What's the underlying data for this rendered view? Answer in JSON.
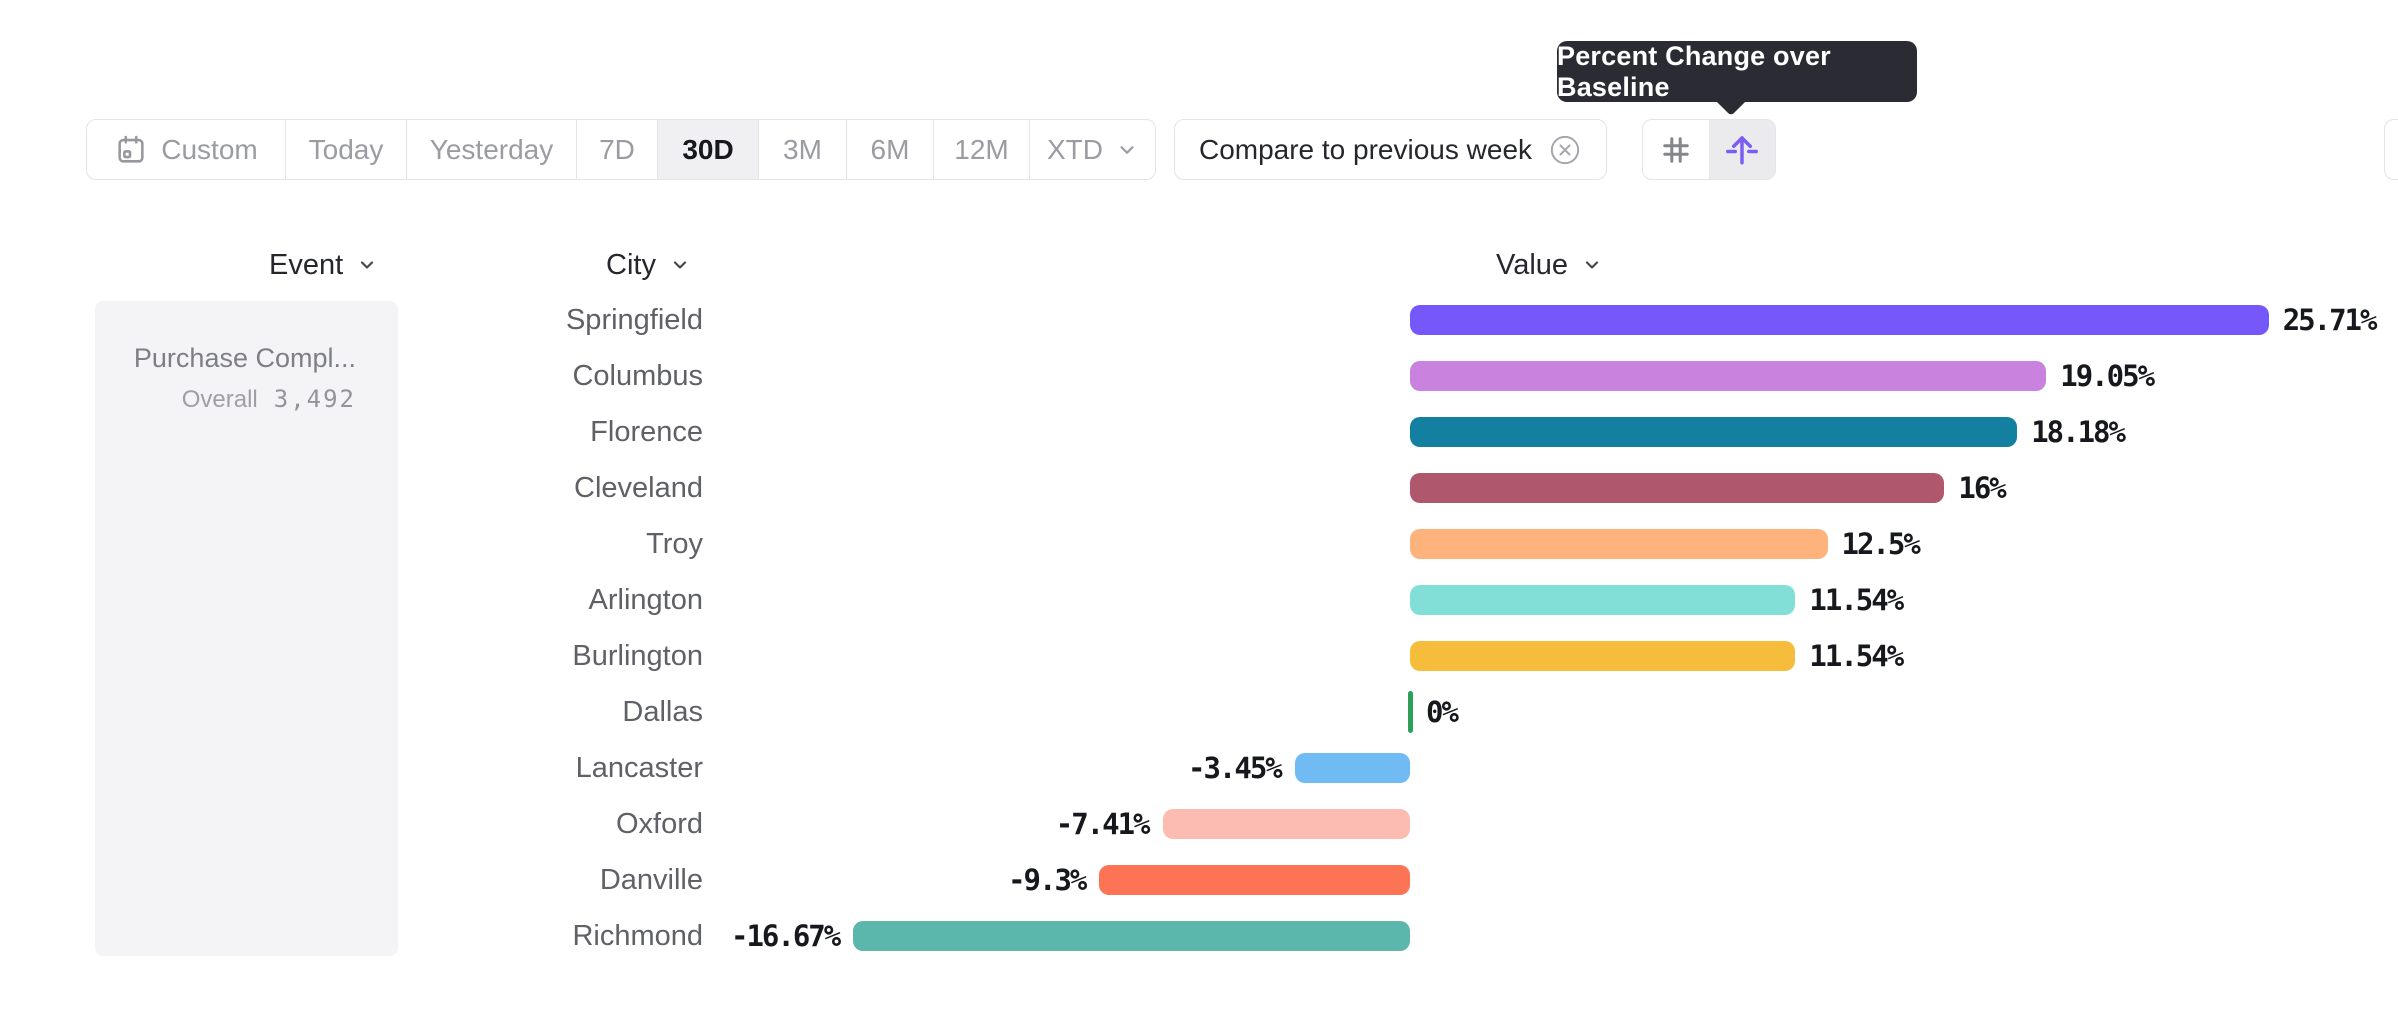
{
  "tooltip": {
    "text": "Percent Change over Baseline",
    "bg_color": "#2b2b33"
  },
  "toolbar": {
    "date_ranges": [
      {
        "key": "custom",
        "label": "Custom",
        "icon": "calendar-icon",
        "selected": false
      },
      {
        "key": "today",
        "label": "Today",
        "selected": false
      },
      {
        "key": "yesterday",
        "label": "Yesterday",
        "selected": false
      },
      {
        "key": "7d",
        "label": "7D",
        "selected": false
      },
      {
        "key": "30d",
        "label": "30D",
        "selected": true
      },
      {
        "key": "3m",
        "label": "3M",
        "selected": false
      },
      {
        "key": "6m",
        "label": "6M",
        "selected": false
      },
      {
        "key": "12m",
        "label": "12M",
        "selected": false
      },
      {
        "key": "xtd",
        "label": "XTD",
        "chevron": true,
        "selected": false
      }
    ]
  },
  "compare_chip": {
    "label": "Compare to previous week",
    "close_icon": "x-circle-icon"
  },
  "view_toggle": {
    "buttons": [
      {
        "icon": "grid-icon",
        "selected": false,
        "color": "#85868c"
      },
      {
        "icon": "baseline-arrow-icon",
        "selected": true,
        "color": "#7b5cf5"
      }
    ]
  },
  "columns": [
    {
      "label": "Event"
    },
    {
      "label": "City"
    },
    {
      "label": "Value"
    }
  ],
  "event_panel": {
    "event_name": "Purchase Compl...",
    "metric_label": "Overall",
    "metric_value": "3,492"
  },
  "chart_data": {
    "type": "bar",
    "orientation": "horizontal",
    "title": "",
    "xlabel": "Percent change over baseline",
    "ylabel": "City",
    "xlim": [
      -16.67,
      25.71
    ],
    "grid": false,
    "legend": false,
    "categories": [
      "Springfield",
      "Columbus",
      "Florence",
      "Cleveland",
      "Troy",
      "Arlington",
      "Burlington",
      "Dallas",
      "Lancaster",
      "Oxford",
      "Danville",
      "Richmond"
    ],
    "values": [
      25.71,
      19.05,
      18.18,
      16,
      12.5,
      11.54,
      11.54,
      0,
      -3.45,
      -7.41,
      -9.3,
      -16.67
    ],
    "value_labels": [
      "25.71%",
      "19.05%",
      "18.18%",
      "16%",
      "12.5%",
      "11.54%",
      "11.54%",
      "0%",
      "-3.45%",
      "-7.41%",
      "-9.3%",
      "-16.67%"
    ],
    "bar_colors": [
      "#7557fa",
      "#c982de",
      "#1480a1",
      "#af576c",
      "#feb27c",
      "#82dfd8",
      "#f5bd3b",
      "#2d9f58",
      "#71bbf4",
      "#fdbcb2",
      "#fd7356",
      "#5bb6ab"
    ],
    "zero_marker_color": "#2d9f58"
  }
}
